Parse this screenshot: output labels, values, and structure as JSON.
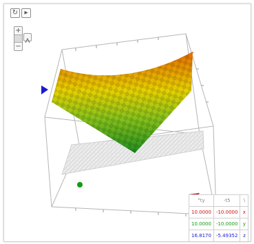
{
  "toolbar": {
    "reset_icon": "reset-icon",
    "play_icon": "play-icon"
  },
  "zoom": {
    "plus": "+",
    "minus": "−",
    "pan_icon": "pan-icon"
  },
  "colors": {
    "x": "#d01010",
    "y": "#139a13",
    "z": "#1a1ad0",
    "surface_low": "#2a9a2a",
    "surface_mid": "#e8d800",
    "surface_high": "#e36a00"
  },
  "coords_table": {
    "headers": [
      "°ty",
      "-t5",
      "∖"
    ],
    "rows": [
      {
        "v1": "10.0000",
        "v2": "-10.0000",
        "axis": "x"
      },
      {
        "v1": "10.0000",
        "v2": "-10.0000",
        "axis": "y"
      },
      {
        "v1": "16.8170",
        "v2": "-5.49352",
        "axis": "z"
      }
    ]
  }
}
